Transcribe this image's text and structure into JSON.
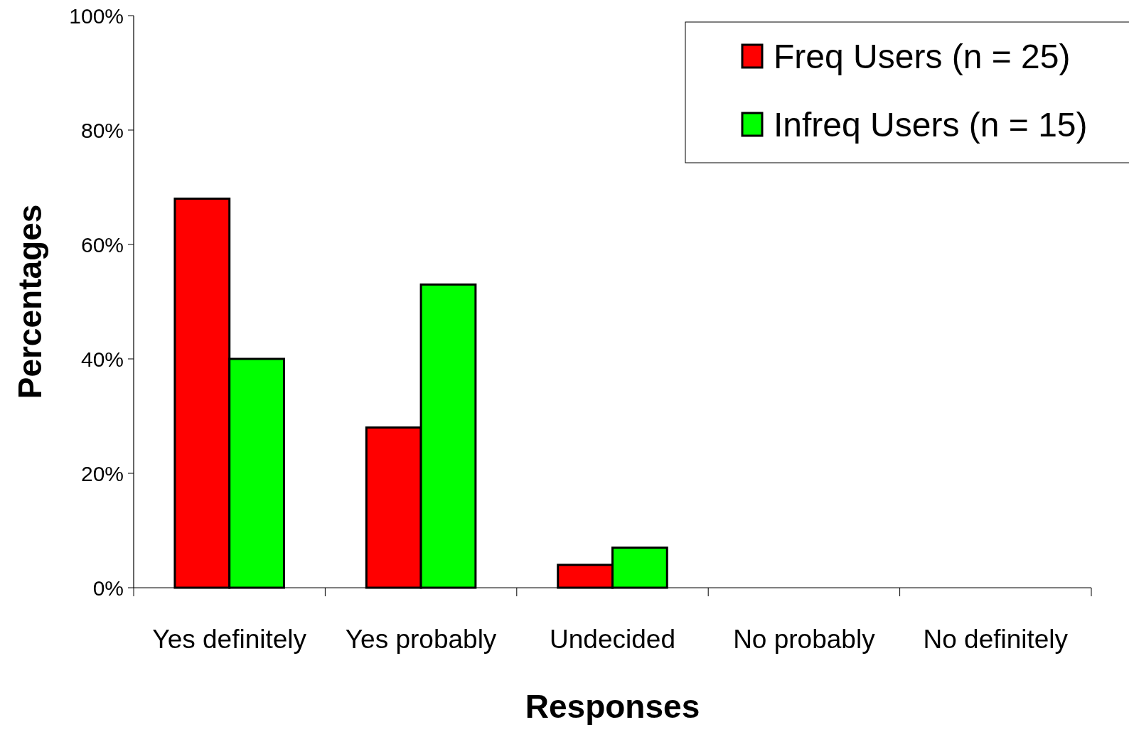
{
  "chart_data": {
    "type": "bar",
    "xlabel": "Responses",
    "ylabel": "Percentages",
    "categories": [
      "Yes definitely",
      "Yes probably",
      "Undecided",
      "No probably",
      "No definitely"
    ],
    "series": [
      {
        "name": "Freq Users (n = 25)",
        "color": "#ff0000",
        "values": [
          68,
          28,
          4,
          0,
          0
        ]
      },
      {
        "name": "Infreq Users (n = 15)",
        "color": "#00ff00",
        "values": [
          40,
          53,
          7,
          0,
          0
        ]
      }
    ],
    "ylim": [
      0,
      100
    ],
    "yticks": [
      {
        "value": 0,
        "label": "0%"
      },
      {
        "value": 20,
        "label": "20%"
      },
      {
        "value": 40,
        "label": "40%"
      },
      {
        "value": 60,
        "label": "60%"
      },
      {
        "value": 80,
        "label": "80%"
      },
      {
        "value": 100,
        "label": "100%"
      }
    ],
    "grid": false,
    "legend": "top right"
  }
}
